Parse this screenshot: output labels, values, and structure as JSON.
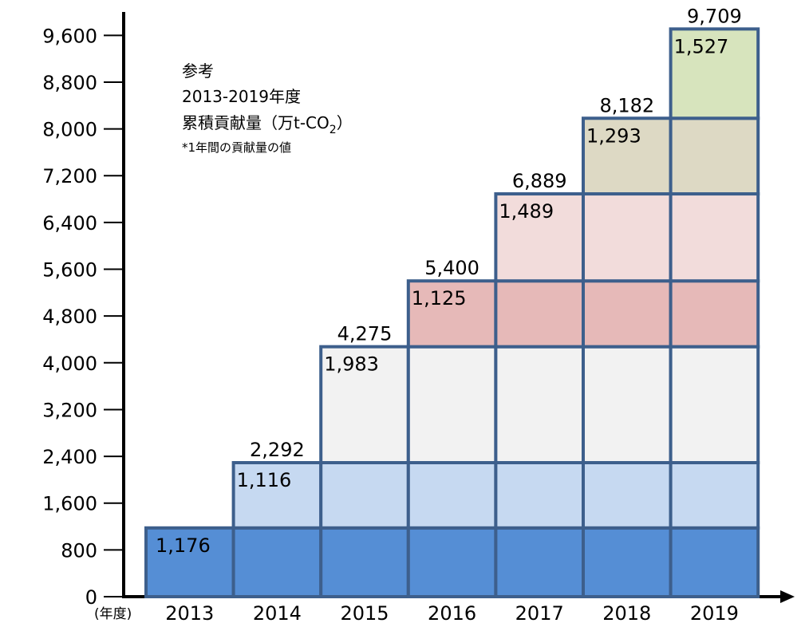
{
  "chart_data": {
    "type": "stacked-bar",
    "categories": [
      "2013",
      "2014",
      "2015",
      "2016",
      "2017",
      "2018",
      "2019"
    ],
    "x_label": "(年度)",
    "series": [
      {
        "color": "#558ed5",
        "values": [
          1176,
          1176,
          1176,
          1176,
          1176,
          1176,
          1176
        ],
        "value_labels": [
          "1,176",
          null,
          null,
          null,
          null,
          null,
          null
        ]
      },
      {
        "color": "#c6d9f1",
        "values": [
          null,
          1116,
          1116,
          1116,
          1116,
          1116,
          1116
        ],
        "value_labels": [
          null,
          "1,116",
          null,
          null,
          null,
          null,
          null
        ]
      },
      {
        "color": "#f2f2f2",
        "values": [
          null,
          null,
          1983,
          1983,
          1983,
          1983,
          1983
        ],
        "value_labels": [
          null,
          null,
          "1,983",
          null,
          null,
          null,
          null
        ]
      },
      {
        "color": "#e6b9b8",
        "values": [
          null,
          null,
          null,
          1125,
          1125,
          1125,
          1125
        ],
        "value_labels": [
          null,
          null,
          null,
          "1,125",
          null,
          null,
          null
        ]
      },
      {
        "color": "#f2dcdb",
        "values": [
          null,
          null,
          null,
          null,
          1489,
          1489,
          1489
        ],
        "value_labels": [
          null,
          null,
          null,
          null,
          "1,489",
          null,
          null
        ]
      },
      {
        "color": "#ddd9c4",
        "values": [
          null,
          null,
          null,
          null,
          null,
          1293,
          1293
        ],
        "value_labels": [
          null,
          null,
          null,
          null,
          null,
          "1,293",
          null
        ]
      },
      {
        "color": "#d7e4bd",
        "values": [
          null,
          null,
          null,
          null,
          null,
          null,
          1527
        ],
        "value_labels": [
          null,
          null,
          null,
          null,
          null,
          null,
          "1,527"
        ]
      }
    ],
    "total_labels": [
      null,
      "2,292",
      "4,275",
      "5,400",
      "6,889",
      "8,182",
      "9,709"
    ],
    "ylim": [
      0,
      10000
    ],
    "yticks": [
      0,
      800,
      {
        "value": 1600,
        "label": "1,600"
      },
      {
        "value": 2400,
        "label": "2,400"
      },
      {
        "value": 3200,
        "label": "3,200"
      },
      {
        "value": 4000,
        "label": "4,000"
      },
      {
        "value": 4800,
        "label": "4,800"
      },
      {
        "value": 5600,
        "label": "5,600"
      },
      {
        "value": 6400,
        "label": "6,400"
      },
      {
        "value": 7200,
        "label": "7,200"
      },
      {
        "value": 8000,
        "label": "8,000"
      },
      {
        "value": 8800,
        "label": "8,800"
      },
      {
        "value": 9600,
        "label": "9,600"
      }
    ],
    "annotation": {
      "lines": [
        "参考",
        "2013-2019年度"
      ],
      "unit_main": "累積貢献量（万t-CO",
      "unit_sub": "2",
      "unit_end": "）",
      "note": "*1年間の貢献量の値"
    },
    "edge_color": "#3d5f8c"
  }
}
